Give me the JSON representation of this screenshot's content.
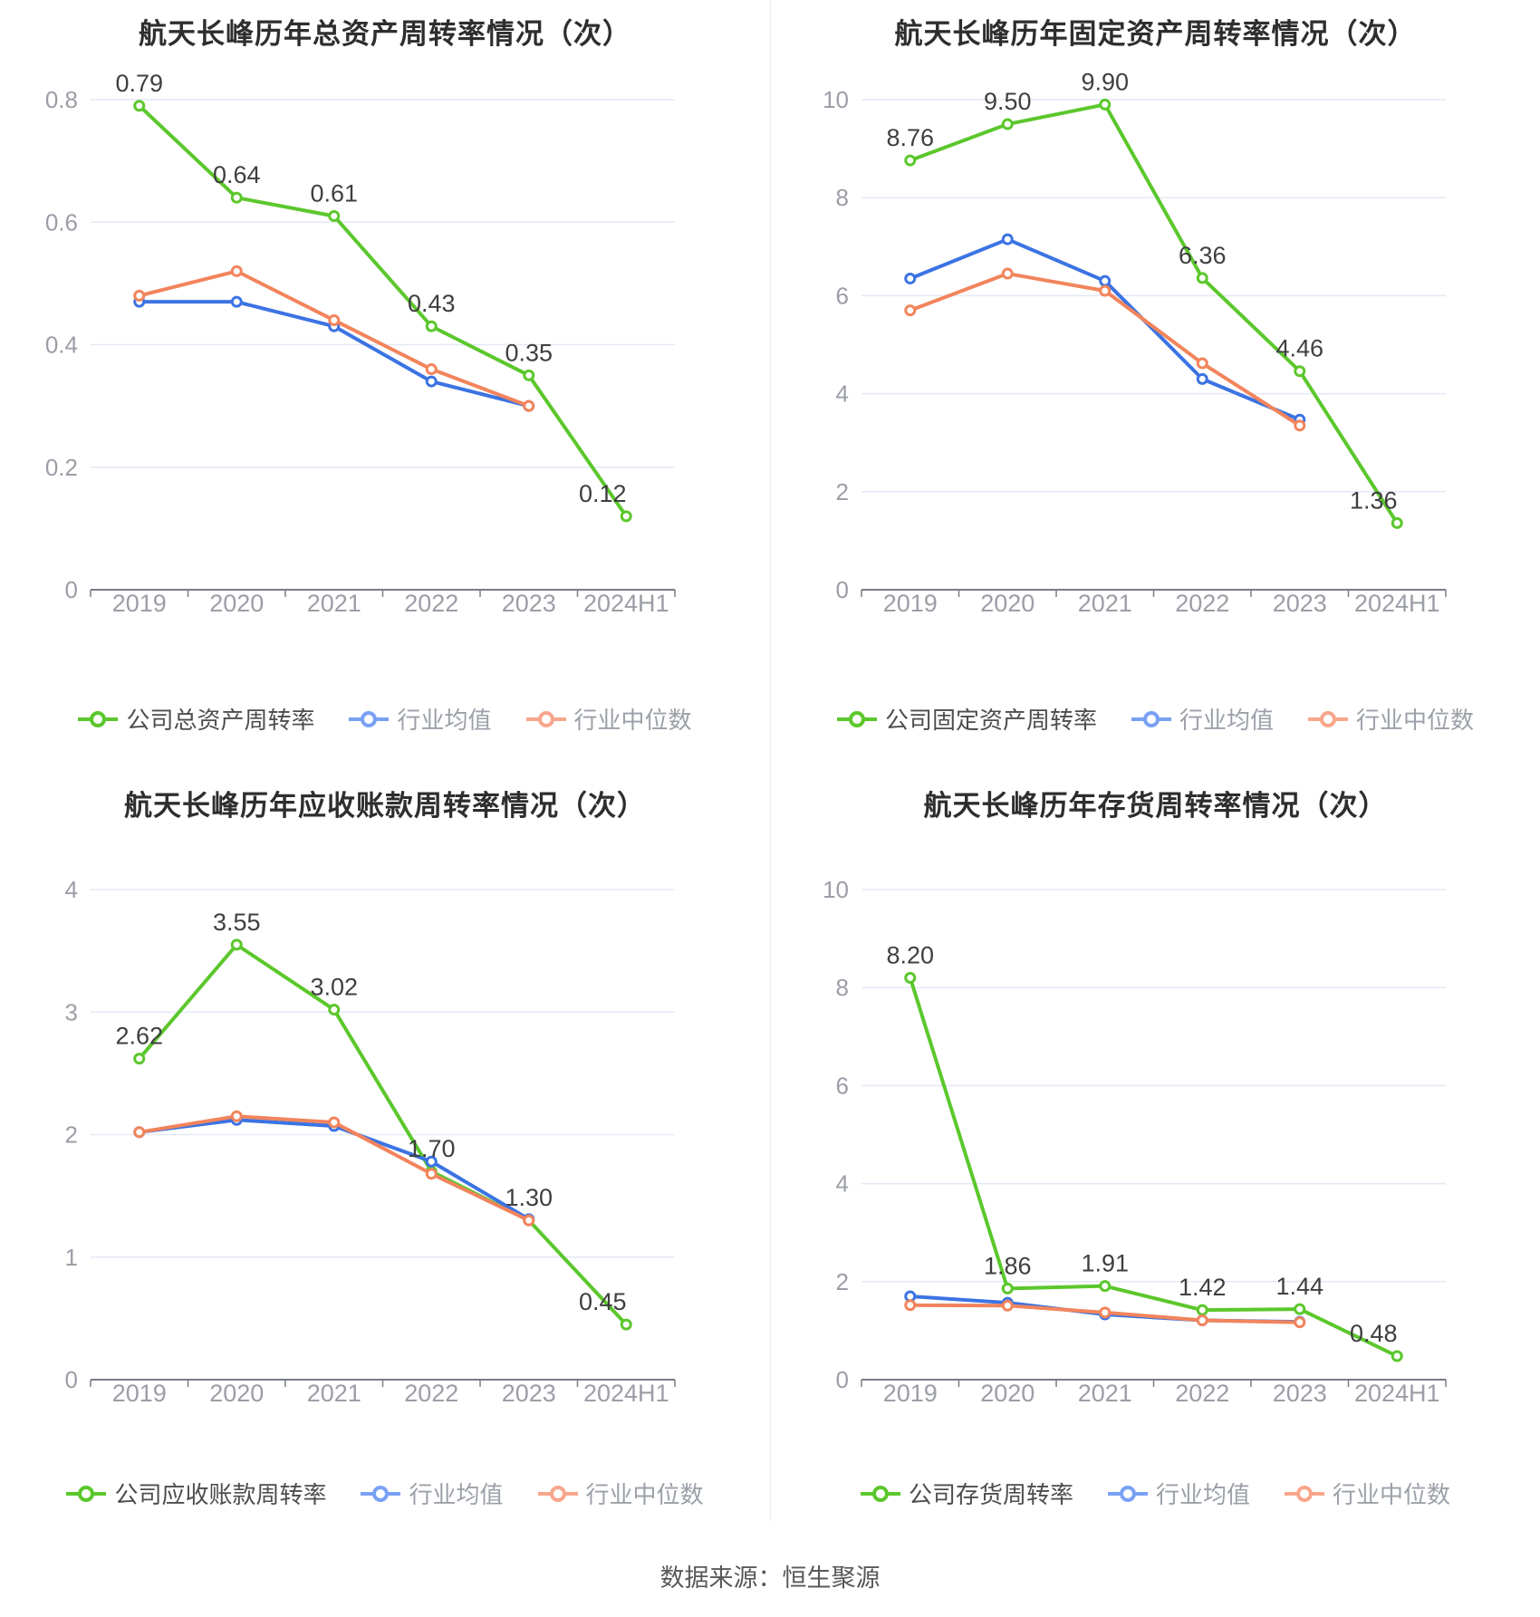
{
  "source_note": "数据来源：恒生聚源",
  "colors": {
    "company": "#5BC72C",
    "industry_avg": "#3B73E3",
    "industry_median": "#F2845C",
    "legend_company": "#5BC72C",
    "legend_industry_avg": "#79A1F3",
    "legend_industry_median": "#F8A68B",
    "grid_line": "#E3E9F4",
    "axis_line": "#797D86",
    "tick_label": "#9B9EA6",
    "value_label": "#3F3F3F",
    "title": "#2E2E2E"
  },
  "chart_data": [
    {
      "type": "line",
      "title": "航天长峰历年总资产周转率情况（次）",
      "categories": [
        "2019",
        "2020",
        "2021",
        "2022",
        "2023",
        "2024H1"
      ],
      "y_axis": {
        "min": 0,
        "max": 0.8,
        "tick_values": [
          0,
          0.2,
          0.4,
          0.6,
          0.8
        ],
        "tick_labels": [
          "0",
          "0.2",
          "0.4",
          "0.6",
          "0.8"
        ],
        "grid": true
      },
      "legend_position": "bottom",
      "series": [
        {
          "name": "公司总资产周转率",
          "role": "company",
          "values": [
            0.79,
            0.64,
            0.61,
            0.43,
            0.35,
            0.12
          ],
          "point_labels": [
            "0.79",
            "0.64",
            "0.61",
            "0.43",
            "0.35",
            "0.12"
          ]
        },
        {
          "name": "行业均值",
          "role": "industry_avg",
          "values": [
            0.47,
            0.47,
            0.43,
            0.34,
            0.3
          ]
        },
        {
          "name": "行业中位数",
          "role": "industry_median",
          "values": [
            0.48,
            0.52,
            0.44,
            0.36,
            0.3
          ]
        }
      ]
    },
    {
      "type": "line",
      "title": "航天长峰历年固定资产周转率情况（次）",
      "categories": [
        "2019",
        "2020",
        "2021",
        "2022",
        "2023",
        "2024H1"
      ],
      "y_axis": {
        "min": 0,
        "max": 10,
        "tick_values": [
          0,
          2,
          4,
          6,
          8,
          10
        ],
        "tick_labels": [
          "0",
          "2",
          "4",
          "6",
          "8",
          "10"
        ],
        "grid": true
      },
      "legend_position": "bottom",
      "series": [
        {
          "name": "公司固定资产周转率",
          "role": "company",
          "values": [
            8.76,
            9.5,
            9.9,
            6.36,
            4.46,
            1.36
          ],
          "point_labels": [
            "8.76",
            "9.50",
            "9.90",
            "6.36",
            "4.46",
            "1.36"
          ]
        },
        {
          "name": "行业均值",
          "role": "industry_avg",
          "values": [
            6.35,
            7.15,
            6.3,
            4.3,
            3.47
          ]
        },
        {
          "name": "行业中位数",
          "role": "industry_median",
          "values": [
            5.7,
            6.45,
            6.1,
            4.62,
            3.35
          ]
        }
      ]
    },
    {
      "type": "line",
      "title": "航天长峰历年应收账款周转率情况（次）",
      "categories": [
        "2019",
        "2020",
        "2021",
        "2022",
        "2023",
        "2024H1"
      ],
      "y_axis": {
        "min": 0,
        "max": 4,
        "tick_values": [
          0,
          1,
          2,
          3,
          4
        ],
        "tick_labels": [
          "0",
          "1",
          "2",
          "3",
          "4"
        ],
        "grid": true
      },
      "legend_position": "bottom",
      "series": [
        {
          "name": "公司应收账款周转率",
          "role": "company",
          "values": [
            2.62,
            3.55,
            3.02,
            1.7,
            1.3,
            0.45
          ],
          "point_labels": [
            "2.62",
            "3.55",
            "3.02",
            "1.70",
            "1.30",
            "0.45"
          ]
        },
        {
          "name": "行业均值",
          "role": "industry_avg",
          "values": [
            2.02,
            2.12,
            2.07,
            1.78,
            1.31
          ]
        },
        {
          "name": "行业中位数",
          "role": "industry_median",
          "values": [
            2.02,
            2.15,
            2.1,
            1.68,
            1.3
          ]
        }
      ]
    },
    {
      "type": "line",
      "title": "航天长峰历年存货周转率情况（次）",
      "categories": [
        "2019",
        "2020",
        "2021",
        "2022",
        "2023",
        "2024H1"
      ],
      "y_axis": {
        "min": 0,
        "max": 10,
        "tick_values": [
          0,
          2,
          4,
          6,
          8,
          10
        ],
        "tick_labels": [
          "0",
          "2",
          "4",
          "6",
          "8",
          "10"
        ],
        "grid": true
      },
      "legend_position": "bottom",
      "series": [
        {
          "name": "公司存货周转率",
          "role": "company",
          "values": [
            8.2,
            1.86,
            1.91,
            1.42,
            1.44,
            0.48
          ],
          "point_labels": [
            "8.20",
            "1.86",
            "1.91",
            "1.42",
            "1.44",
            "0.48"
          ]
        },
        {
          "name": "行业均值",
          "role": "industry_avg",
          "values": [
            1.7,
            1.57,
            1.33,
            1.21,
            1.18
          ]
        },
        {
          "name": "行业中位数",
          "role": "industry_median",
          "values": [
            1.52,
            1.51,
            1.37,
            1.21,
            1.17
          ]
        }
      ]
    }
  ]
}
